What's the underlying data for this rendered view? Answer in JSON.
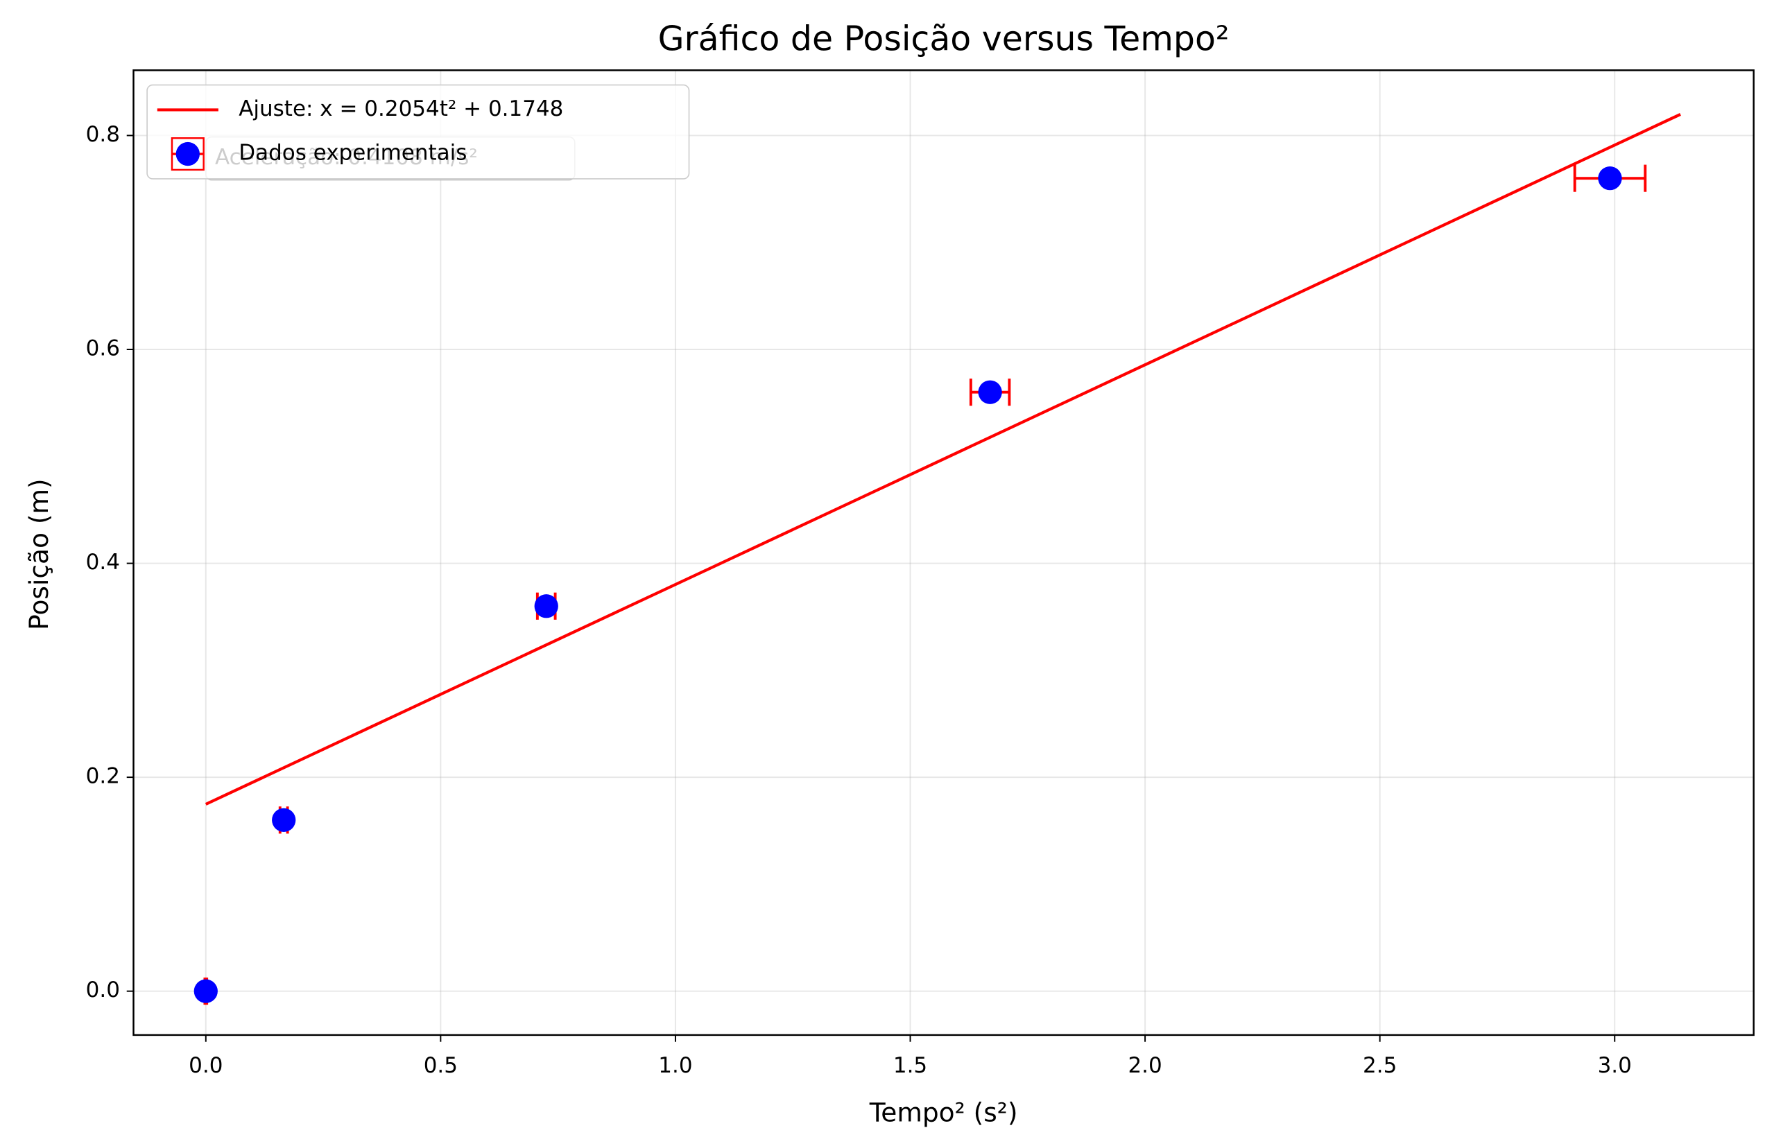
{
  "chart_data": {
    "type": "scatter",
    "title": "Gráfico de Posição versus Tempo²",
    "x_label": "Tempo² (s²)",
    "y_label": "Posição (m)",
    "annotation": "Aceleração: 0.4108 m/s²",
    "xlim": [
      -0.154,
      3.296
    ],
    "ylim": [
      -0.041,
      0.861
    ],
    "xticks": [
      {
        "value": 0,
        "label": "0.0"
      },
      {
        "value": 0.5,
        "label": "0.5"
      },
      {
        "value": 1,
        "label": "1.0"
      },
      {
        "value": 1.5,
        "label": "1.5"
      },
      {
        "value": 2,
        "label": "2.0"
      },
      {
        "value": 2.5,
        "label": "2.5"
      },
      {
        "value": 3,
        "label": "3.0"
      }
    ],
    "yticks": [
      {
        "value": 0,
        "label": "0.0"
      },
      {
        "value": 0.2,
        "label": "0.2"
      },
      {
        "value": 0.4,
        "label": "0.4"
      },
      {
        "value": 0.6,
        "label": "0.6"
      },
      {
        "value": 0.8,
        "label": "0.8"
      }
    ],
    "grid": true,
    "legend": "upper left",
    "series": [
      {
        "name": "Ajuste: x = 0.2054t² + 0.1748",
        "kind": "line",
        "color": "#ff0000",
        "x": [
          0,
          3.14
        ],
        "values": [
          0.1748,
          0.8198
        ]
      },
      {
        "name": "Dados experimentais",
        "kind": "points",
        "color": "#0000ff",
        "error_color": "#ff0000",
        "x": [
          0,
          0.166,
          0.725,
          1.67,
          2.99
        ],
        "values": [
          0,
          0.16,
          0.36,
          0.56,
          0.76
        ],
        "x_err": [
          0.002,
          0.008,
          0.019,
          0.041,
          0.075
        ]
      }
    ]
  }
}
